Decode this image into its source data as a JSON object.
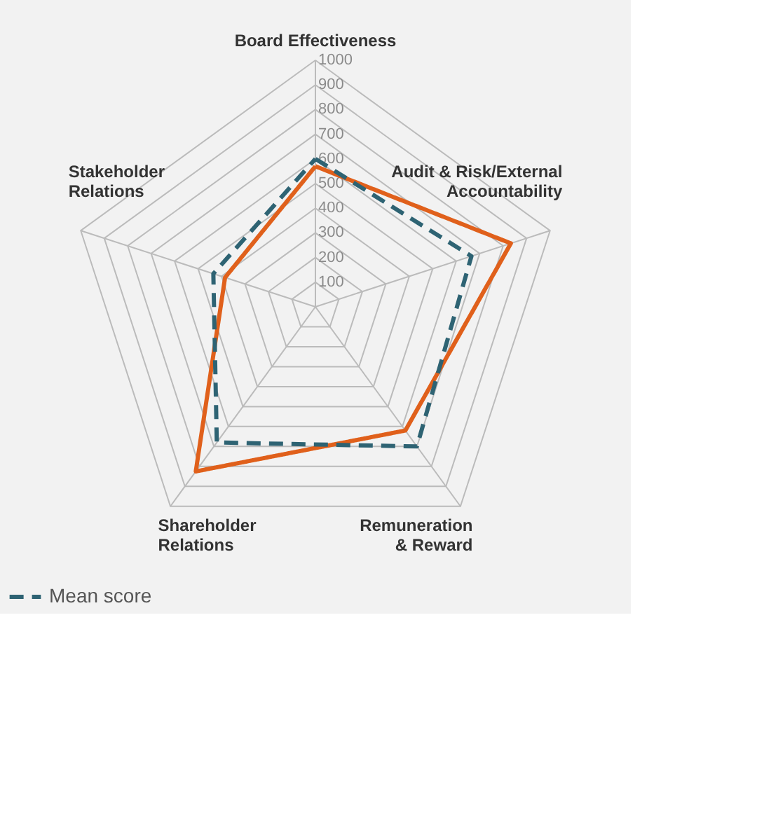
{
  "chart_data": {
    "type": "radar",
    "categories": [
      "Board Effectiveness",
      "Audit & Risk/External\nAccountability",
      "Remuneration\n& Reward",
      "Shareholder\nRelations",
      "Stakeholder\nRelations"
    ],
    "series": [
      {
        "color": "#e0601b",
        "line_style": "solid",
        "values": [
          570,
          833,
          620,
          825,
          385
        ]
      },
      {
        "name": "Mean score",
        "color": "#2e6373",
        "line_style": "dashed",
        "values": [
          600,
          665,
          700,
          680,
          435
        ]
      }
    ],
    "ylim": [
      0,
      1000
    ],
    "yticks": [
      100,
      200,
      300,
      400,
      500,
      600,
      700,
      800,
      900,
      1000
    ],
    "legend": "bottom",
    "marker": "none"
  }
}
